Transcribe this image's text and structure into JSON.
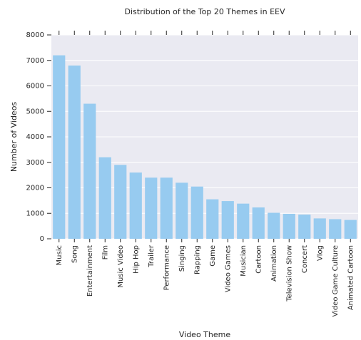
{
  "chart_data": {
    "type": "bar",
    "title": "Distribution of the Top 20 Themes in EEV",
    "x_label": "Video Theme",
    "y_label": "Number of Videos",
    "categories": [
      "Music",
      "Song",
      "Entertainment",
      "Film",
      "Music Video",
      "Hip Hop",
      "Trailer",
      "Performance",
      "Singing",
      "Rapping",
      "Game",
      "Video Games",
      "Musician",
      "Cartoon",
      "Animation",
      "Television Show",
      "Concert",
      "Vlog",
      "Video Game Culture",
      "Animated Cartoon"
    ],
    "values": [
      7200,
      6800,
      5300,
      3200,
      2900,
      2600,
      2400,
      2400,
      2200,
      2050,
      1550,
      1480,
      1380,
      1230,
      1020,
      980,
      950,
      800,
      770,
      740
    ],
    "color": "#97cbf0",
    "ylim": [
      0,
      8000
    ],
    "yticks": [
      0,
      1000,
      2000,
      3000,
      4000,
      5000,
      6000,
      7000,
      8000
    ],
    "grid": true
  }
}
